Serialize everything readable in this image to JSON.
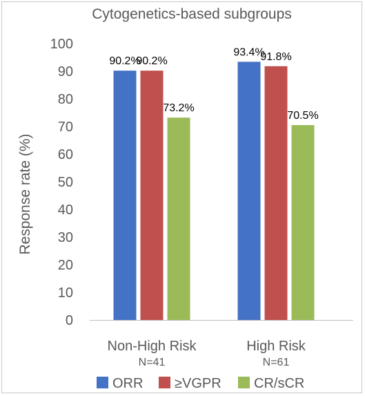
{
  "chart_data": {
    "type": "bar",
    "title": "Cytogenetics-based subgroups",
    "ylabel": "Response rate (%)",
    "xlabel": "",
    "ylim": [
      0,
      100
    ],
    "yticks": [
      0,
      10,
      20,
      30,
      40,
      50,
      60,
      70,
      80,
      90,
      100
    ],
    "grid": false,
    "legend_position": "bottom",
    "categories": [
      "Non-High Risk",
      "High Risk"
    ],
    "category_sublabels": [
      "N=41",
      "N=61"
    ],
    "series": [
      {
        "name": "ORR",
        "color": "#4472c4",
        "values": [
          90.2,
          93.4
        ],
        "labels": [
          "90.2%",
          "93.4%"
        ]
      },
      {
        "name": "≥VGPR",
        "color": "#c0504d",
        "values": [
          90.2,
          91.8
        ],
        "labels": [
          "90.2%",
          "91.8%"
        ]
      },
      {
        "name": "CR/sCR",
        "color": "#9bbb59",
        "values": [
          73.2,
          70.5
        ],
        "labels": [
          "73.2%",
          "70.5%"
        ]
      }
    ]
  }
}
